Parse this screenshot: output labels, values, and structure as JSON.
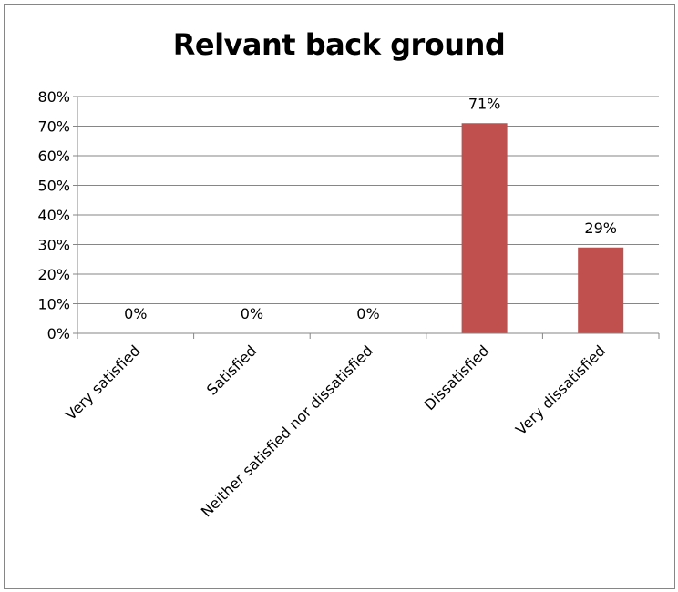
{
  "chart_data": {
    "type": "bar",
    "title": "Relvant back ground",
    "xlabel": "",
    "ylabel": "",
    "categories": [
      "Very satisfied",
      "Satisfied",
      "Neither satisfied nor dissatisfied",
      "Dissatisfied",
      "Very dissatisfied"
    ],
    "values": [
      0,
      0,
      0,
      71,
      29
    ],
    "data_labels": [
      "0%",
      "0%",
      "0%",
      "71%",
      "29%"
    ],
    "ylim": [
      0,
      80
    ],
    "yticks": [
      0,
      10,
      20,
      30,
      40,
      50,
      60,
      70,
      80
    ],
    "ytick_labels": [
      "0%",
      "10%",
      "20%",
      "30%",
      "40%",
      "50%",
      "60%",
      "70%",
      "80%"
    ],
    "grid": true,
    "legend": "none",
    "colors": {
      "bar": "#C0504D",
      "gridline": "#868686",
      "axis": "#868686",
      "border": "#868686"
    }
  }
}
